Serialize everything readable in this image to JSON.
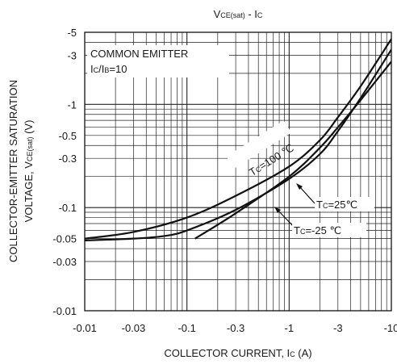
{
  "chart_data": {
    "type": "line",
    "title_main": "V",
    "title_sub": "CE(sat)",
    "title_mid": " - I",
    "title_sub2": "C",
    "xlabel": "COLLECTOR CURRENT, I",
    "xlabel_sub": "C",
    "xlabel_unit": " (A)",
    "ylabel_line1": "COLLECTOR-EMITTER SATURATION",
    "ylabel_line2a": "VOLTAGE, V",
    "ylabel_line2_sub": "CE(sat)",
    "ylabel_line2_unit": " (V)",
    "x_scale": "log",
    "y_scale": "log",
    "xlim": [
      -0.01,
      -10
    ],
    "ylim": [
      -0.01,
      -5
    ],
    "grid": true,
    "x_ticks": [
      {
        "value": -0.01,
        "label": "-0.01"
      },
      {
        "value": -0.03,
        "label": "-0.03"
      },
      {
        "value": -0.1,
        "label": "-0.1"
      },
      {
        "value": -0.3,
        "label": "-0.3"
      },
      {
        "value": -1,
        "label": "-1"
      },
      {
        "value": -3,
        "label": "-3"
      },
      {
        "value": -10,
        "label": "-10"
      }
    ],
    "y_ticks": [
      {
        "value": -5,
        "label": "-5"
      },
      {
        "value": -3,
        "label": "-3"
      },
      {
        "value": -1,
        "label": "-1"
      },
      {
        "value": -0.5,
        "label": "-0.5"
      },
      {
        "value": -0.3,
        "label": "-0.3"
      },
      {
        "value": -0.1,
        "label": "-0.1"
      },
      {
        "value": -0.05,
        "label": "-0.05"
      },
      {
        "value": -0.03,
        "label": "-0.03"
      },
      {
        "value": -0.01,
        "label": "-0.01"
      }
    ],
    "legend_box": {
      "line1": "COMMON EMITTER",
      "line2a": "I",
      "line2_sub1": "C",
      "line2b": "/I",
      "line2_sub2": "B",
      "line2c": "=10"
    },
    "series": [
      {
        "label_a": "T",
        "label_sub": "C",
        "label_b": "=100 ℃",
        "x": [
          -0.01,
          -0.03,
          -0.1,
          -0.3,
          -1,
          -2,
          -3,
          -5,
          -10
        ],
        "y": [
          -0.05,
          -0.058,
          -0.08,
          -0.13,
          -0.25,
          -0.45,
          -0.75,
          -1.5,
          -4.3
        ]
      },
      {
        "label_a": "T",
        "label_sub": "C",
        "label_b": "=25℃",
        "x": [
          -0.01,
          -0.03,
          -0.06,
          -0.1,
          -0.3,
          -1,
          -2,
          -3,
          -5,
          -10
        ],
        "y": [
          -0.048,
          -0.05,
          -0.053,
          -0.06,
          -0.095,
          -0.19,
          -0.33,
          -0.55,
          -1.15,
          -3.4
        ]
      },
      {
        "label_a": "T",
        "label_sub": "C",
        "label_b": "=-25 ℃",
        "x": [
          -0.12,
          -0.3,
          -1,
          -2,
          -3,
          -5,
          -10
        ],
        "y": [
          -0.05,
          -0.088,
          -0.2,
          -0.38,
          -0.6,
          -1.1,
          -2.6
        ]
      }
    ]
  }
}
